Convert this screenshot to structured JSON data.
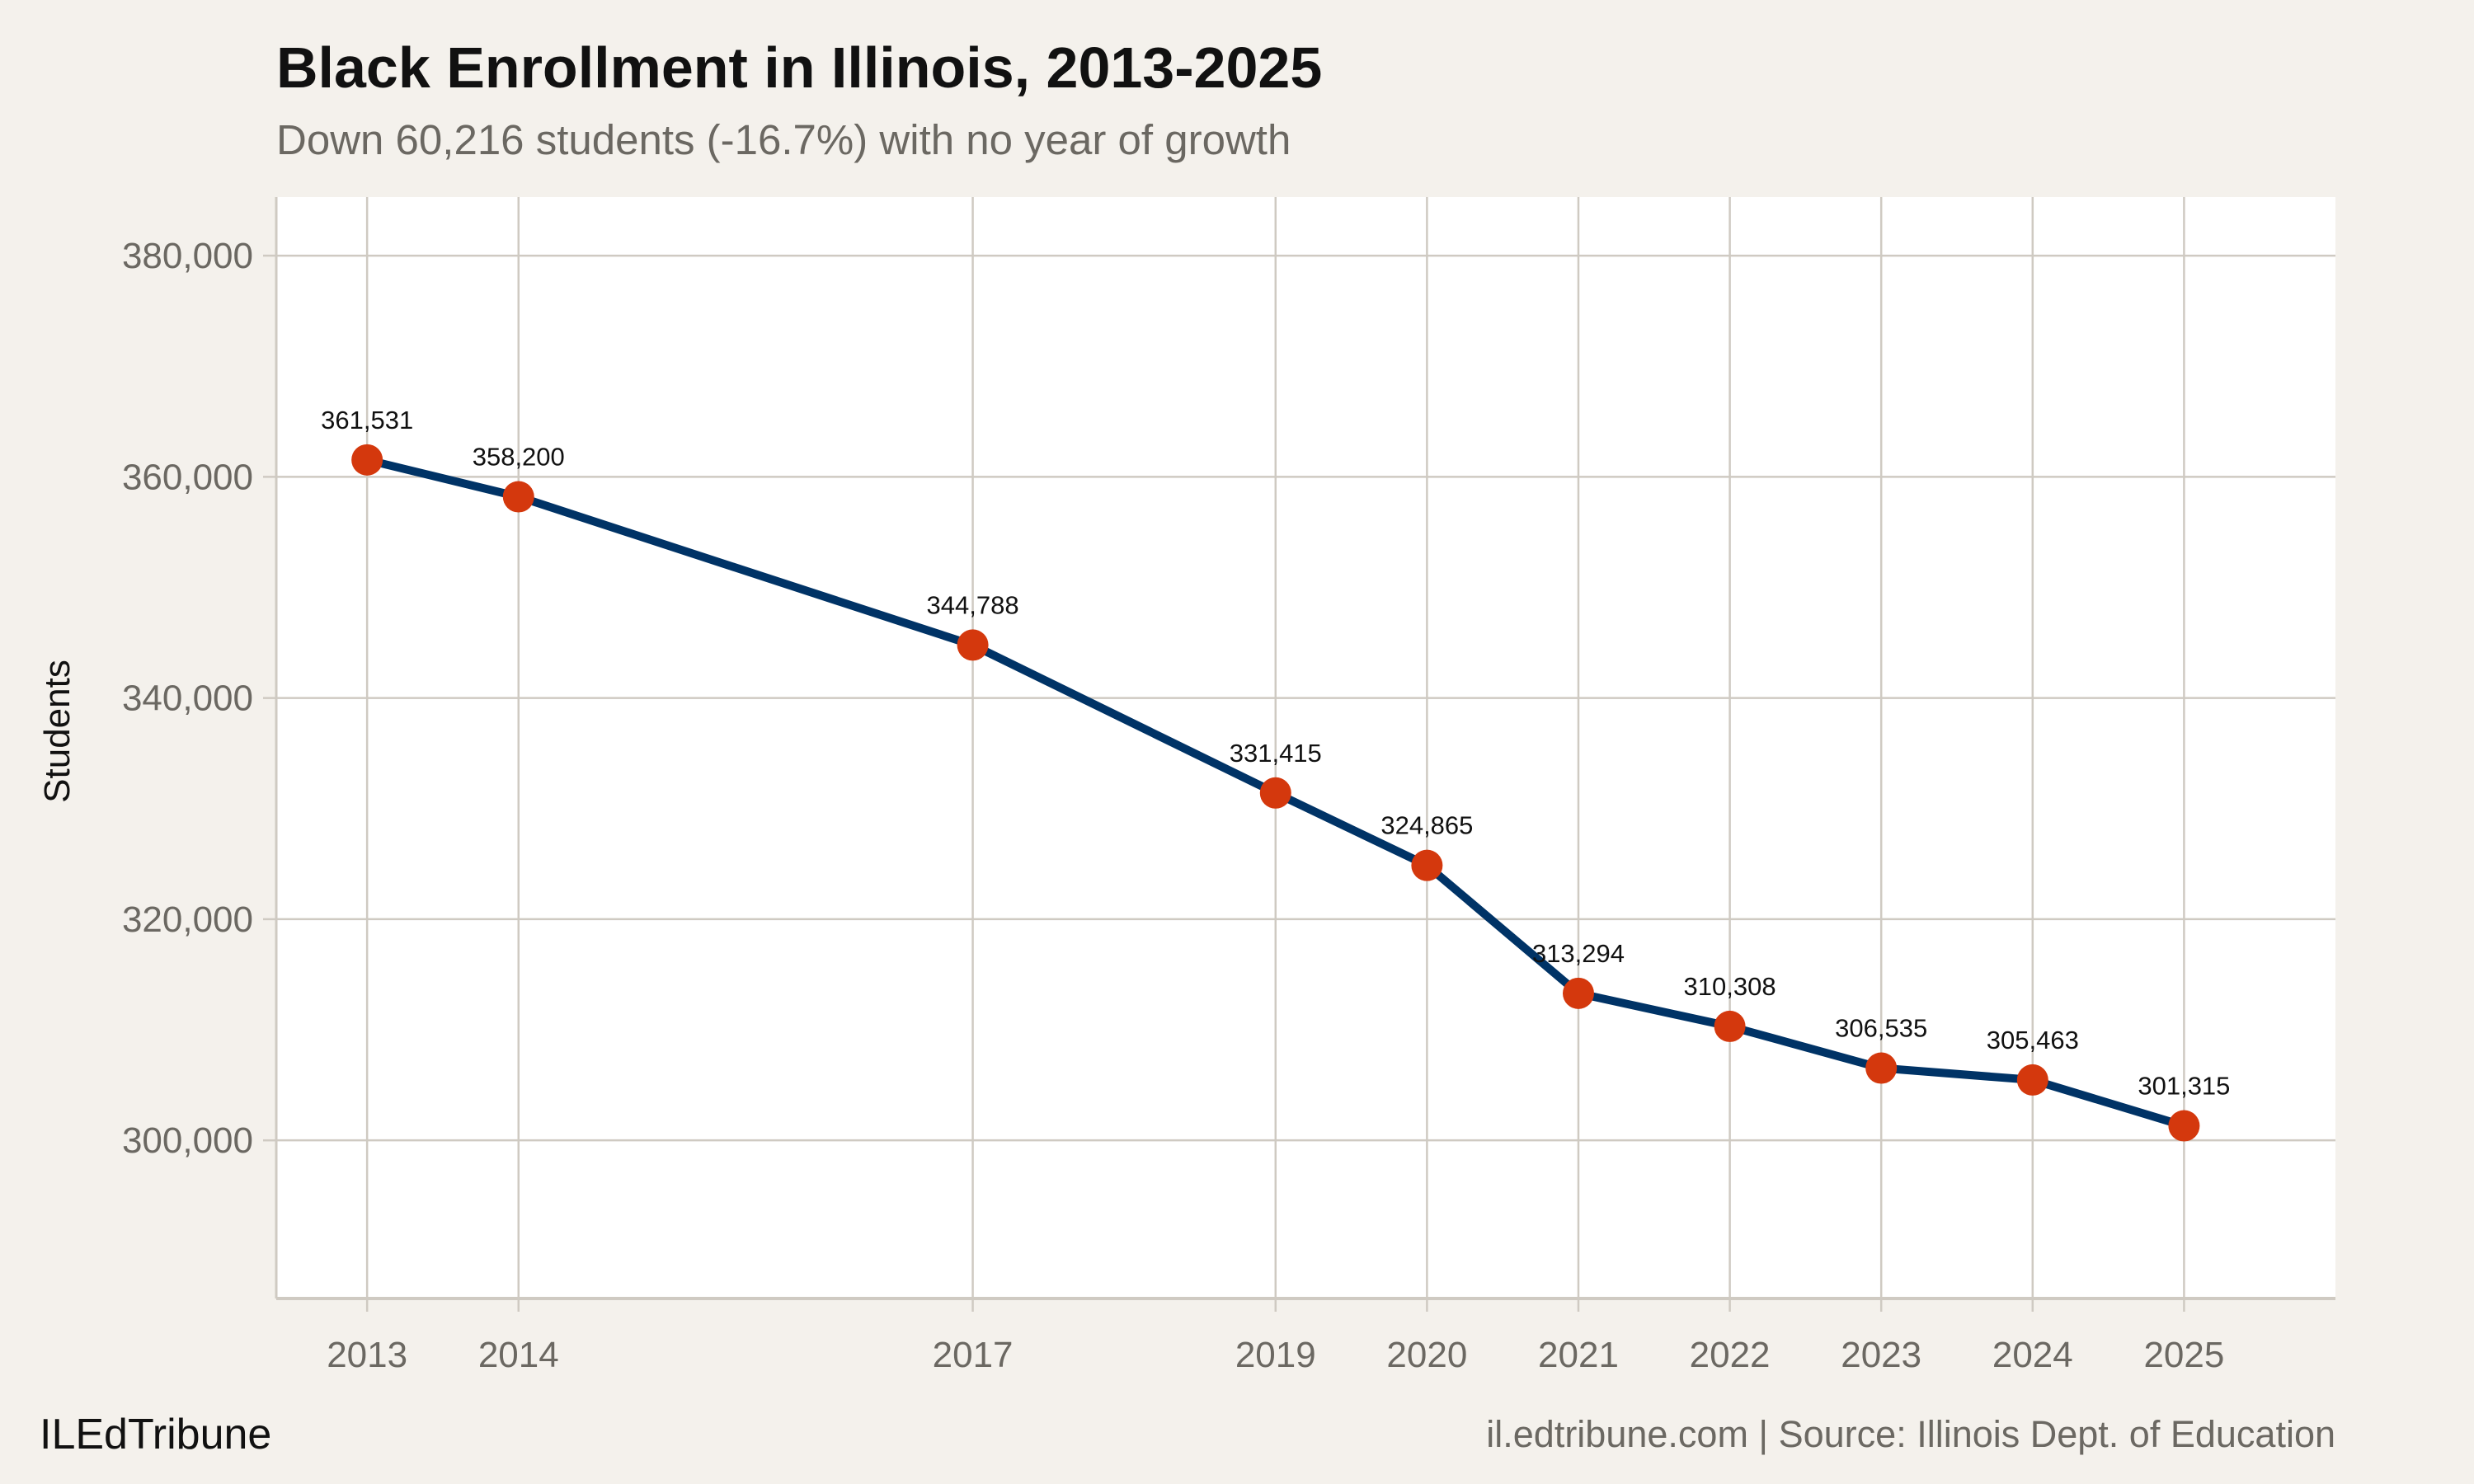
{
  "title": "Black Enrollment in Illinois, 2013-2025",
  "subtitle": "Down 60,216 students (-16.7%) with no year of growth",
  "footer": {
    "brand": "ILEdTribune",
    "source": "il.edtribune.com | Source: Illinois Dept. of Education"
  },
  "colors": {
    "background": "#f4f1ec",
    "panel": "#ffffff",
    "grid": "#cfcac2",
    "line": "#003366",
    "point": "#d4380d",
    "axis_text": "#6b6862"
  },
  "chart_data": {
    "type": "line",
    "title": "Black Enrollment in Illinois, 2013-2025",
    "subtitle": "Down 60,216 students (-16.7%) with no year of growth",
    "xlabel": "",
    "ylabel": "Students",
    "x": [
      2013,
      2014,
      2017,
      2019,
      2020,
      2021,
      2022,
      2023,
      2024,
      2025
    ],
    "y": [
      361531,
      358200,
      344788,
      331415,
      324865,
      313294,
      310308,
      306535,
      305463,
      301315
    ],
    "data_labels": [
      "361,531",
      "358,200",
      "344,788",
      "331,415",
      "324,865",
      "313,294",
      "310,308",
      "306,535",
      "305,463",
      "301,315"
    ],
    "x_ticks": [
      "2013",
      "2014",
      "2017",
      "2019",
      "2020",
      "2021",
      "2022",
      "2023",
      "2024",
      "2025"
    ],
    "y_ticks": [
      300000,
      320000,
      340000,
      360000,
      380000
    ],
    "y_tick_labels": [
      "300,000",
      "320,000",
      "340,000",
      "360,000",
      "380,000"
    ],
    "xlim": [
      2012.4,
      2026.0
    ],
    "ylim": [
      285700,
      385300
    ],
    "grid": true,
    "legend": "none"
  }
}
